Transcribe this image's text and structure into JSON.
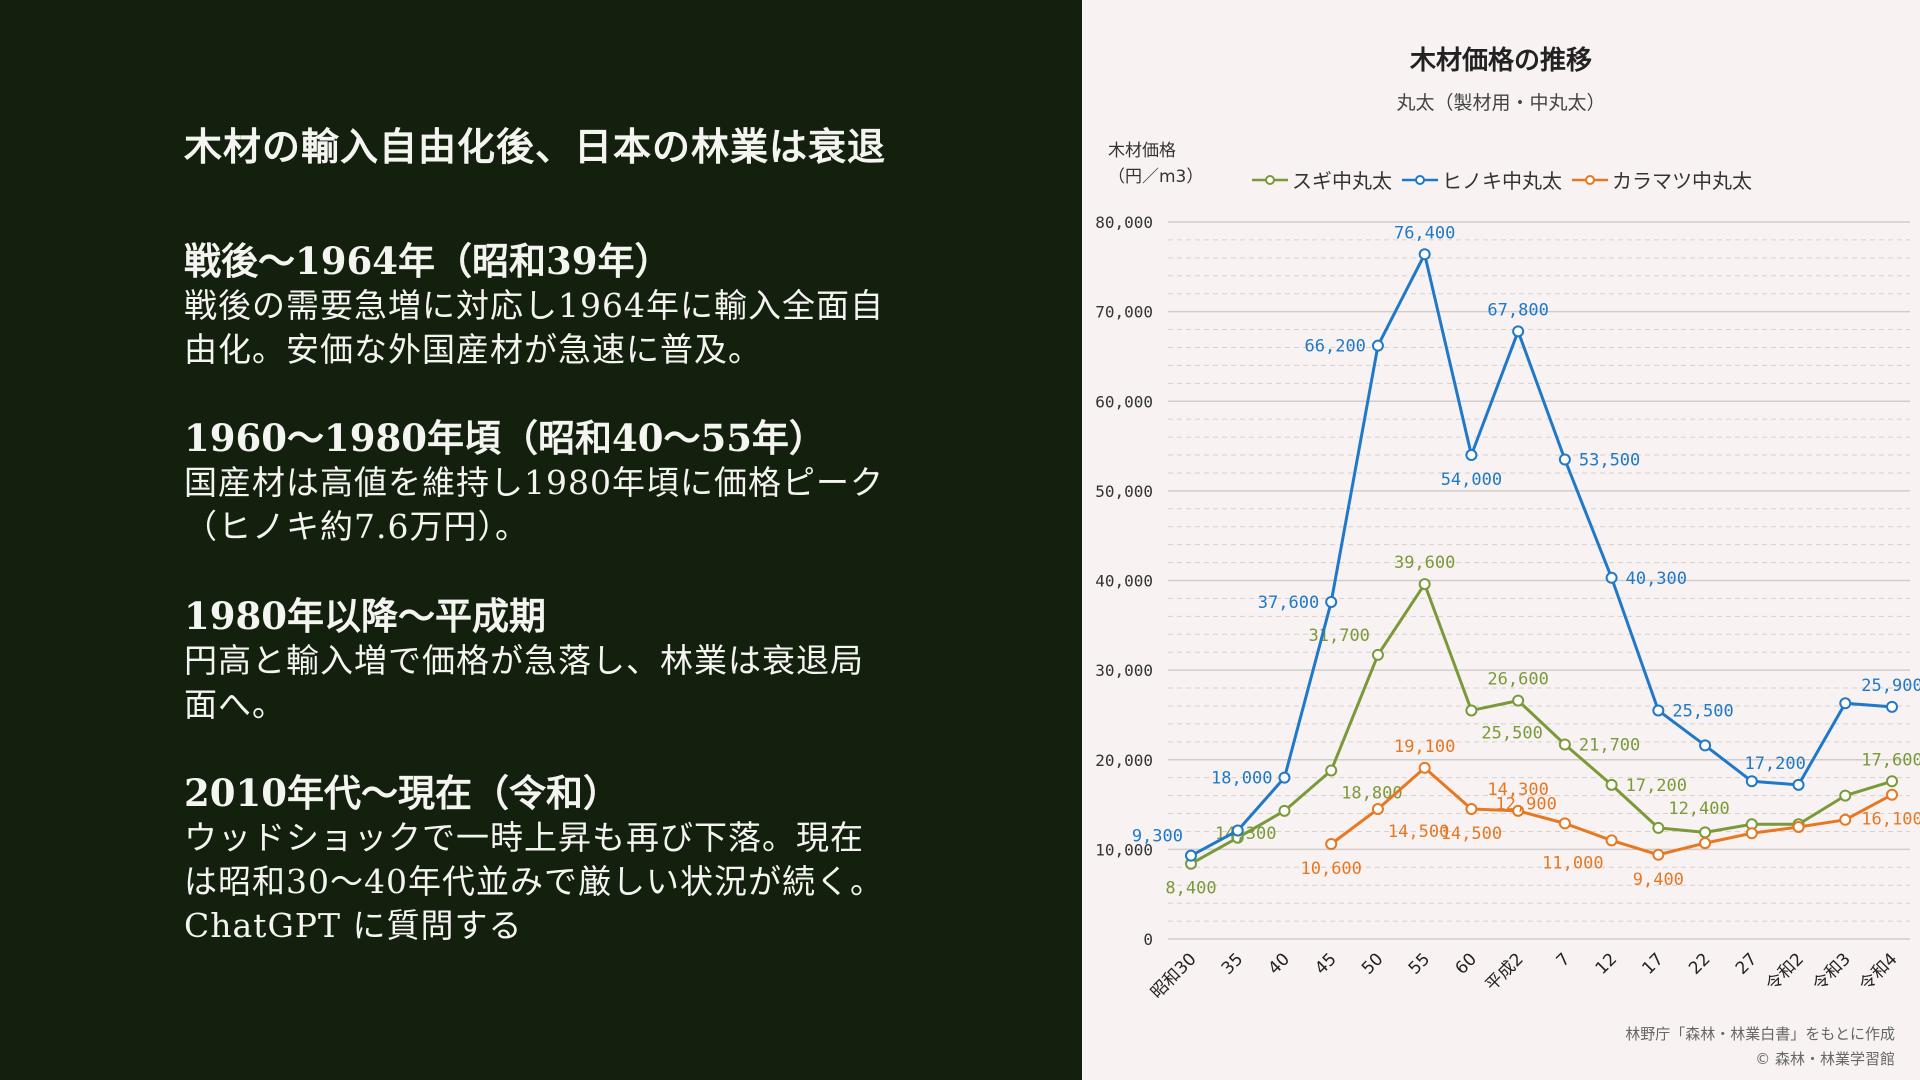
{
  "left": {
    "title": "木材の輸入自由化後、日本の林業は衰退",
    "sections": [
      {
        "heading": "戦後〜1964年（昭和39年）",
        "lines": [
          "戦後の需要急増に対応し1964年に輸入全面自",
          "由化。安価な外国産材が急速に普及。"
        ]
      },
      {
        "heading": "1960〜1980年頃（昭和40〜55年）",
        "lines": [
          "国産材は高値を維持し1980年頃に価格ピーク",
          "（ヒノキ約7.6万円）。"
        ]
      },
      {
        "heading": "1980年以降〜平成期",
        "lines": [
          "円高と輸入増で価格が急落し、林業は衰退局",
          "面へ。"
        ]
      },
      {
        "heading": "2010年代〜現在（令和）",
        "lines": [
          "ウッドショックで一時上昇も再び下落。現在",
          "は昭和30〜40年代並みで厳しい状況が続く。",
          "ChatGPT に質問する"
        ]
      }
    ]
  },
  "chart_data": {
    "type": "line",
    "title": "木材価格の推移",
    "subtitle": "丸太（製材用・中丸太）",
    "ylabel": [
      "木材価格",
      "（円／m3）"
    ],
    "xlabel": "",
    "ylim": [
      0,
      80000
    ],
    "yticks": [
      "0",
      "10,000",
      "20,000",
      "30,000",
      "40,000",
      "50,000",
      "60,000",
      "70,000",
      "80,000"
    ],
    "ytick_values": [
      0,
      10000,
      20000,
      30000,
      40000,
      50000,
      60000,
      70000,
      80000
    ],
    "grid": true,
    "legend_position": "top",
    "categories": [
      "昭和30",
      "35",
      "40",
      "45",
      "50",
      "55",
      "60",
      "平成2",
      "7",
      "12",
      "17",
      "22",
      "27",
      "令和2",
      "令和3",
      "令和4"
    ],
    "series": [
      {
        "name": "スギ中丸太",
        "color": "#7a9a3a",
        "values": [
          8400,
          11300,
          14300,
          18800,
          31700,
          39600,
          25500,
          26600,
          21700,
          17200,
          12400,
          11900,
          12800,
          12800,
          16000,
          17600
        ],
        "labels": [
          "8,400",
          null,
          "14,300",
          "18,800",
          "31,700",
          "39,600",
          "25,500",
          "26,600",
          "21,700",
          "17,200",
          "12,400",
          null,
          null,
          null,
          null,
          "17,600"
        ]
      },
      {
        "name": "ヒノキ中丸太",
        "color": "#1f78c8",
        "values": [
          9300,
          12100,
          18000,
          37600,
          66200,
          76400,
          54000,
          67800,
          53500,
          40300,
          25500,
          21600,
          17600,
          17200,
          26300,
          25900
        ],
        "labels": [
          "9,300",
          null,
          "18,000",
          "37,600",
          "66,200",
          "76,400",
          "54,000",
          "67,800",
          "53,500",
          "40,300",
          "25,500",
          null,
          null,
          "17,200",
          null,
          "25,900"
        ]
      },
      {
        "name": "カラマツ中丸太",
        "color": "#e87722",
        "values": [
          null,
          null,
          null,
          10600,
          14500,
          19100,
          14500,
          14300,
          12900,
          11000,
          9400,
          10700,
          11800,
          12500,
          13300,
          16100
        ],
        "labels": [
          null,
          null,
          null,
          "10,600",
          "14,500",
          "19,100",
          "14,500",
          "14,300",
          "12,900",
          "11,000",
          "9,400",
          null,
          null,
          null,
          null,
          "16,100"
        ]
      }
    ],
    "source": [
      "林野庁「森林・林業白書」をもとに作成",
      "© 森林・林業学習館"
    ]
  }
}
